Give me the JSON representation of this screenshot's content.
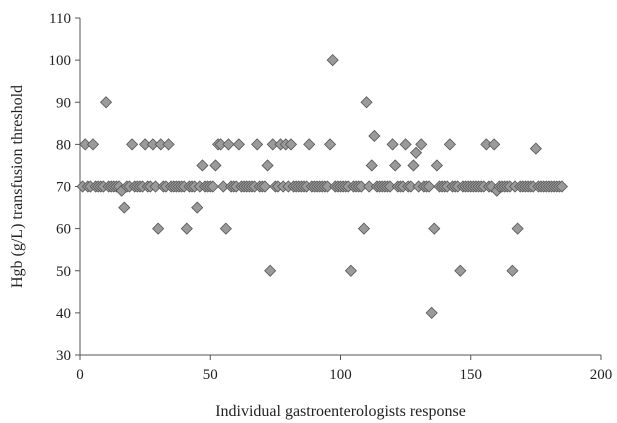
{
  "chart_data": {
    "type": "scatter",
    "title": "",
    "xlabel": "Individual gastroenterologists response",
    "ylabel": "Hgb (g/L) transfusion threshold",
    "xlim": [
      0,
      200
    ],
    "ylim": [
      30,
      110
    ],
    "xticks": [
      0,
      50,
      100,
      150,
      200
    ],
    "yticks": [
      30,
      40,
      50,
      60,
      70,
      80,
      90,
      100,
      110
    ],
    "grid": false,
    "legend": "none",
    "marker": "diamond",
    "marker_color": "#9a9a9a",
    "marker_edge_color": "#555555",
    "series": [
      {
        "x": [
          1,
          2,
          3,
          4,
          5,
          6,
          7,
          8,
          9,
          10,
          11,
          12,
          13,
          14,
          15,
          16,
          17,
          18,
          19,
          20,
          21,
          22,
          23,
          24,
          25,
          26,
          27,
          28,
          29,
          30,
          31,
          32,
          33,
          34,
          35,
          36,
          37,
          38,
          39,
          40,
          41,
          42,
          43,
          44,
          45,
          46,
          47,
          48,
          49,
          50,
          51,
          52,
          53,
          54,
          55,
          56,
          57,
          58,
          59,
          60,
          61,
          62,
          63,
          64,
          65,
          66,
          67,
          68,
          69,
          70,
          71,
          72,
          73,
          74,
          75,
          76,
          77,
          78,
          79,
          80,
          81,
          82,
          83,
          84,
          85,
          86,
          87,
          88,
          89,
          90,
          91,
          92,
          93,
          94,
          95,
          96,
          97,
          98,
          99,
          100,
          101,
          102,
          103,
          104,
          105,
          106,
          107,
          108,
          109,
          110,
          111,
          112,
          113,
          114,
          115,
          116,
          117,
          118,
          119,
          120,
          121,
          122,
          123,
          124,
          125,
          126,
          127,
          128,
          129,
          130,
          131,
          132,
          133,
          134,
          135,
          136,
          137,
          138,
          139,
          140,
          141,
          142,
          143,
          144,
          145,
          146,
          147,
          148,
          149,
          150,
          151,
          152,
          153,
          154,
          155,
          156,
          157,
          158,
          159,
          160,
          161,
          162,
          163,
          164,
          165,
          166,
          167,
          168,
          169,
          170,
          171,
          172,
          173,
          174,
          175,
          176,
          177,
          178,
          179,
          180,
          181,
          182,
          183,
          184,
          185
        ],
        "y": [
          70,
          80,
          70,
          70,
          80,
          70,
          70,
          70,
          70,
          90,
          70,
          70,
          70,
          70,
          70,
          69,
          65,
          70,
          70,
          80,
          70,
          70,
          70,
          70,
          80,
          70,
          70,
          80,
          70,
          60,
          80,
          70,
          70,
          80,
          70,
          70,
          70,
          70,
          70,
          70,
          60,
          70,
          70,
          70,
          65,
          70,
          75,
          70,
          70,
          70,
          70,
          75,
          80,
          80,
          70,
          60,
          80,
          70,
          70,
          70,
          80,
          70,
          70,
          70,
          70,
          70,
          70,
          80,
          70,
          70,
          70,
          75,
          50,
          80,
          70,
          70,
          80,
          70,
          80,
          70,
          80,
          70,
          70,
          70,
          70,
          70,
          70,
          80,
          70,
          70,
          70,
          70,
          70,
          70,
          70,
          80,
          100,
          70,
          70,
          70,
          70,
          70,
          70,
          50,
          70,
          70,
          70,
          70,
          60,
          90,
          70,
          75,
          82,
          70,
          70,
          70,
          70,
          70,
          70,
          80,
          75,
          70,
          70,
          70,
          80,
          70,
          70,
          75,
          78,
          70,
          80,
          70,
          70,
          70,
          40,
          60,
          75,
          70,
          70,
          70,
          70,
          80,
          70,
          70,
          70,
          50,
          70,
          70,
          70,
          70,
          70,
          70,
          70,
          70,
          70,
          80,
          70,
          70,
          80,
          69,
          70,
          70,
          70,
          70,
          70,
          50,
          70,
          60,
          70,
          70,
          70,
          70,
          70,
          70,
          79,
          70,
          70,
          70,
          70,
          70,
          70,
          70,
          70,
          70,
          70
        ]
      }
    ]
  }
}
